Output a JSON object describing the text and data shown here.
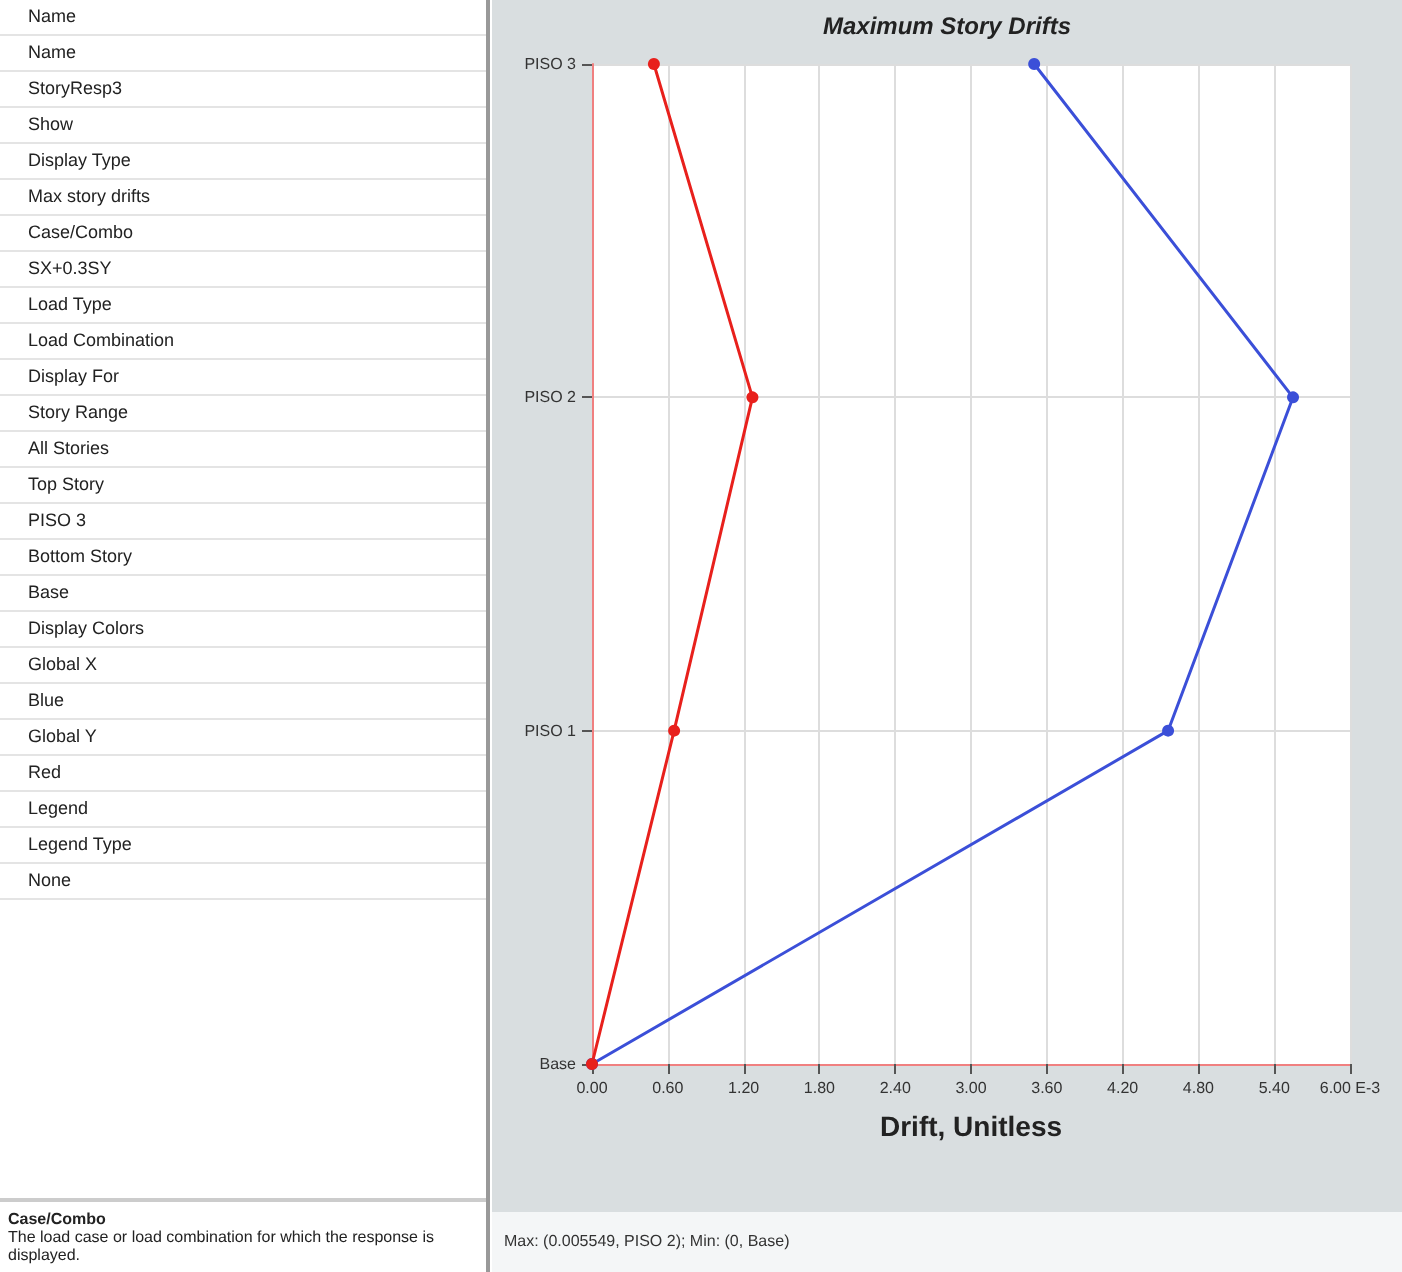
{
  "chart_data": {
    "type": "line",
    "orientation": "horizontal",
    "title": "Maximum Story Drifts",
    "xlabel": "Drift, Unitless",
    "categories": [
      "PISO 3",
      "PISO 2",
      "PISO 1",
      "Base"
    ],
    "series": [
      {
        "color": "#3b4fd8",
        "values": [
          3.5,
          5.549,
          4.56,
          0
        ]
      },
      {
        "color": "#e8201c",
        "values": [
          0.49,
          1.27,
          0.65,
          0
        ]
      }
    ],
    "xlim": [
      0,
      6
    ],
    "xticks": [
      {
        "value": 0,
        "label": "0.00"
      },
      {
        "value": 0.6,
        "label": "0.60"
      },
      {
        "value": 1.2,
        "label": "1.20"
      },
      {
        "value": 1.8,
        "label": "1.80"
      },
      {
        "value": 2.4,
        "label": "2.40"
      },
      {
        "value": 3,
        "label": "3.00"
      },
      {
        "value": 3.6,
        "label": "3.60"
      },
      {
        "value": 4.2,
        "label": "4.20"
      },
      {
        "value": 4.8,
        "label": "4.80"
      },
      {
        "value": 5.4,
        "label": "5.40"
      },
      {
        "value": 6,
        "label": "6.00 E-3"
      }
    ],
    "grid": true,
    "marker": "circle",
    "line_style": "solid",
    "annotations": [
      "Name",
      "Name",
      "StoryResp3",
      "Show",
      "Display Type",
      "Max story drifts",
      "Case/Combo",
      "SX+0.3SY",
      "Load Type",
      "Load Combination",
      "Display For",
      "Story Range",
      "All Stories",
      "Top Story",
      "PISO 3",
      "Bottom Story",
      "Base",
      "Display Colors",
      "Global X",
      "Blue",
      "Global Y",
      "Red",
      "Legend",
      "Legend Type",
      "None",
      "Case/Combo",
      "The load case or load combination for which the response is displayed.",
      "Max: (0.005549, PISO 2);  Min: (0, Base)"
    ]
  }
}
